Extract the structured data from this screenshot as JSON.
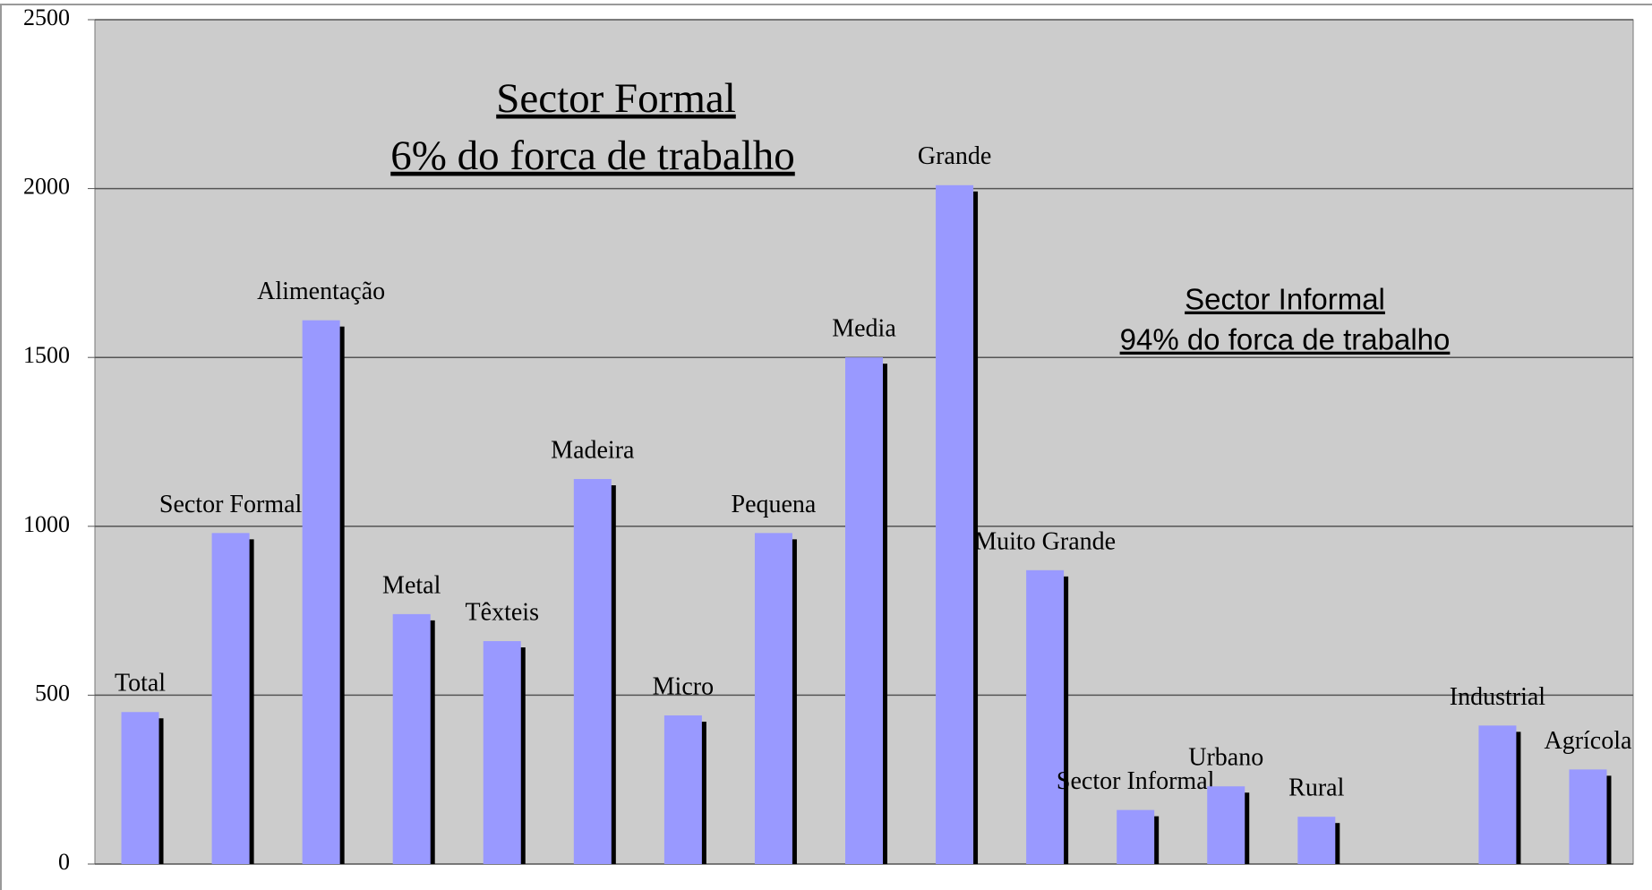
{
  "chart_data": {
    "type": "bar",
    "annotations": [
      "Sector Formal",
      "6% do forca de trabalho",
      "Sector Informal",
      "94% do forca de trabalho"
    ],
    "categories": [
      "Total",
      "Sector Formal",
      "Alimentação",
      "Metal",
      "Têxteis",
      "Madeira",
      "Micro",
      "Pequena",
      "Media",
      "Grande",
      "Muito Grande",
      "Sector Informal",
      "Urbano",
      "Rural",
      null,
      "Industrial",
      "Agrícola"
    ],
    "values": [
      450,
      980,
      1610,
      740,
      660,
      1140,
      440,
      980,
      1500,
      2010,
      870,
      160,
      230,
      140,
      null,
      410,
      280
    ],
    "color": "#9999ff",
    "ylim": [
      0,
      2500
    ],
    "yticks": [
      0,
      500,
      1000,
      1500,
      2000,
      2500
    ],
    "grid": true
  }
}
